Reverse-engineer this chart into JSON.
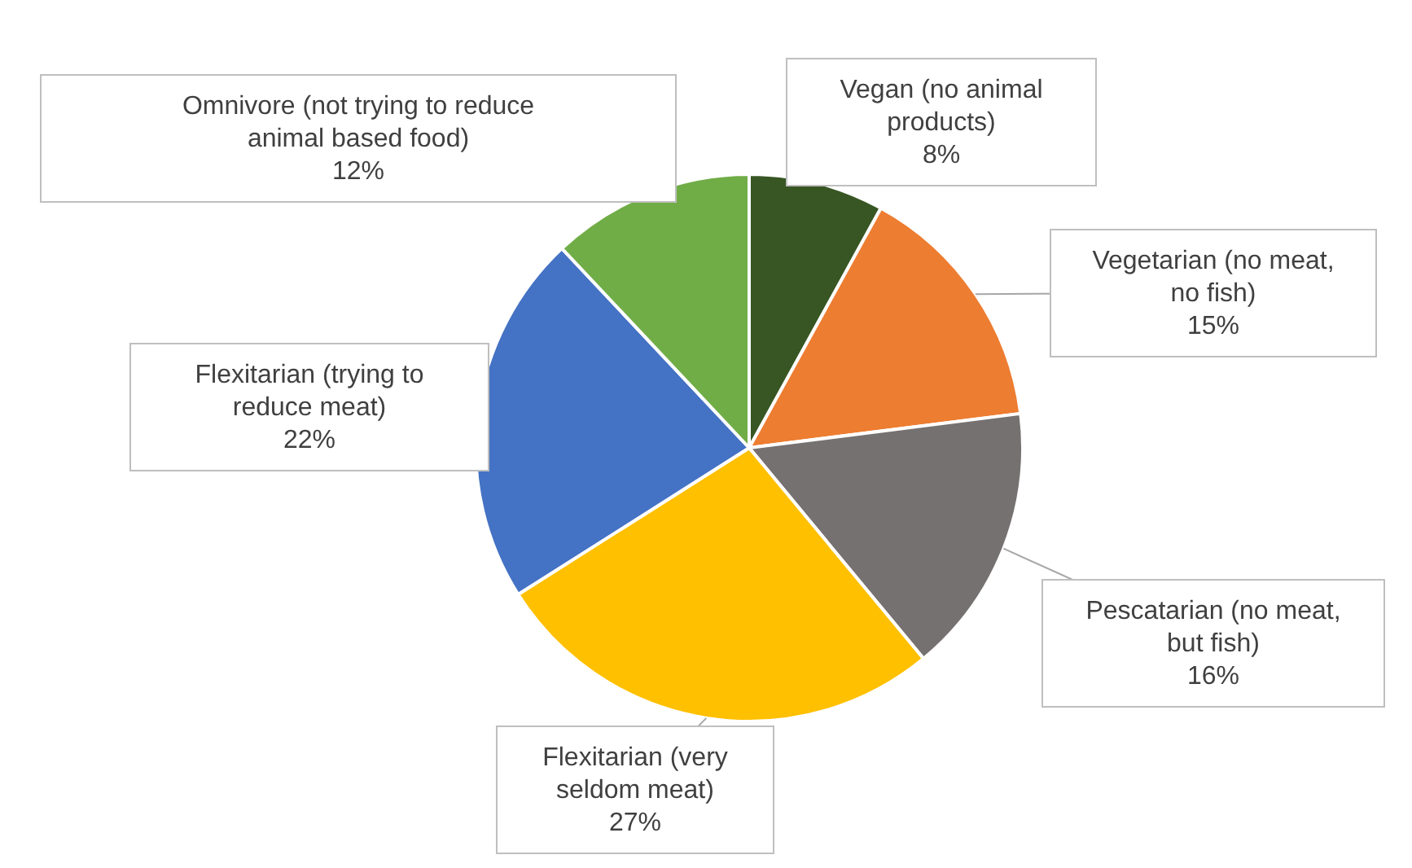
{
  "chart_data": {
    "type": "pie",
    "categories": [
      "Vegan (no animal products)",
      "Vegetarian (no meat, no fish)",
      "Pescatarian (no meat, but fish)",
      "Flexitarian (very seldom meat)",
      "Flexitarian (trying to reduce meat)",
      "Omnivore (not trying to reduce animal based food)"
    ],
    "values": [
      8,
      15,
      16,
      27,
      22,
      12
    ],
    "colors": [
      "#375623",
      "#ed7d31",
      "#767171",
      "#ffc000",
      "#4472c4",
      "#70ad47"
    ],
    "value_labels": [
      "8%",
      "15%",
      "16%",
      "27%",
      "22%",
      "12%"
    ]
  }
}
